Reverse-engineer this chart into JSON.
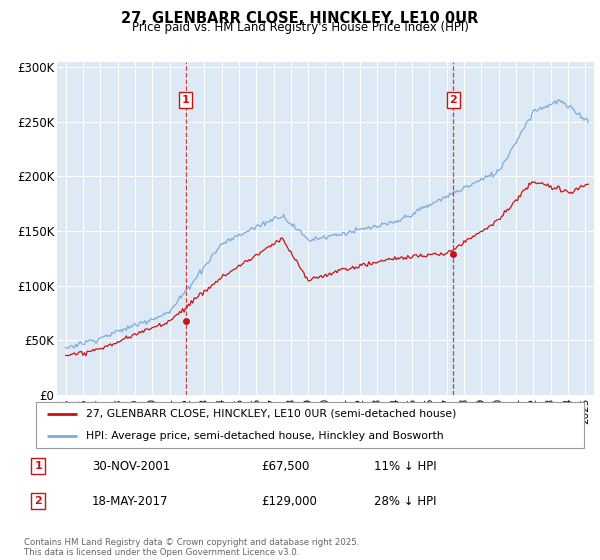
{
  "title": "27, GLENBARR CLOSE, HINCKLEY, LE10 0UR",
  "subtitle": "Price paid vs. HM Land Registry's House Price Index (HPI)",
  "ylabel_ticks": [
    "£0",
    "£50K",
    "£100K",
    "£150K",
    "£200K",
    "£250K",
    "£300K"
  ],
  "ytick_values": [
    0,
    50000,
    100000,
    150000,
    200000,
    250000,
    300000
  ],
  "ylim": [
    0,
    305000
  ],
  "xlim_start": 1994.5,
  "xlim_end": 2025.5,
  "hpi_color": "#7aacdb",
  "price_color": "#cc1111",
  "sale1_date": 2001.92,
  "sale1_price": 67500,
  "sale2_date": 2017.38,
  "sale2_price": 129000,
  "legend_label1": "27, GLENBARR CLOSE, HINCKLEY, LE10 0UR (semi-detached house)",
  "legend_label2": "HPI: Average price, semi-detached house, Hinckley and Bosworth",
  "annotation1_label": "1",
  "annotation1_date_str": "30-NOV-2001",
  "annotation1_price_str": "£67,500",
  "annotation1_pct_str": "11% ↓ HPI",
  "annotation2_label": "2",
  "annotation2_date_str": "18-MAY-2017",
  "annotation2_price_str": "£129,000",
  "annotation2_pct_str": "28% ↓ HPI",
  "footer": "Contains HM Land Registry data © Crown copyright and database right 2025.\nThis data is licensed under the Open Government Licence v3.0.",
  "plot_bg_color": "#ddeaf6"
}
